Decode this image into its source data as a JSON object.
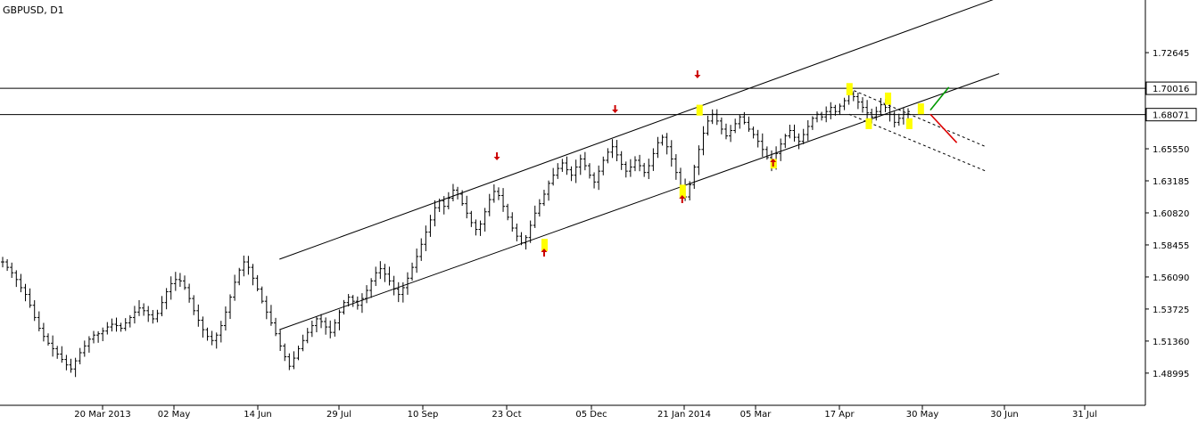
{
  "chart_data": {
    "type": "ohlc",
    "title": "GBPUSD, D1",
    "x_tick_labels": [
      "20 Mar 2013",
      "02 May",
      "14 Jun",
      "29 Jul",
      "10 Sep",
      "23 Oct",
      "05 Dec",
      "21 Jan 2014",
      "05 Mar",
      "17 Apr",
      "30 May",
      "30 Jun",
      "31 Jul"
    ],
    "y_ticks": [
      1.72645,
      1.63185,
      1.6082,
      1.58455,
      1.5609,
      1.53725,
      1.5136,
      1.48995
    ],
    "y_tick_labels": [
      "1.72645",
      "1.63185",
      "1.60820",
      "1.58455",
      "1.56090",
      "1.53725",
      "1.51360",
      "1.48995"
    ],
    "ylim": [
      1.4662,
      1.7653
    ],
    "horizontal_levels": [
      {
        "value": 1.70016,
        "label": "1.70016"
      },
      {
        "value": 1.68071,
        "label": "1.68071"
      }
    ],
    "extra_y_labels": [
      "1.65550"
    ],
    "colors": {
      "bars": "#000000",
      "highlight": "#ffff00",
      "arrow": "#cc0000",
      "bullish_projection": "#009900",
      "bearish_projection": "#dd0000",
      "label_box": "#ffffff"
    },
    "series": [
      {
        "values": [
          1.572,
          1.568,
          1.564,
          1.559,
          1.553,
          1.548,
          1.54,
          1.531,
          1.523,
          1.517,
          1.512,
          1.508,
          1.504,
          1.5,
          1.496,
          1.493,
          1.499,
          1.505,
          1.51,
          1.515,
          1.518,
          1.519,
          1.521,
          1.524,
          1.526,
          1.525,
          1.523,
          1.527,
          1.531,
          1.535,
          1.538,
          1.536,
          1.533,
          1.53,
          1.534,
          1.542,
          1.55,
          1.556,
          1.559,
          1.558,
          1.553,
          1.545,
          1.536,
          1.529,
          1.522,
          1.517,
          1.514,
          1.518,
          1.525,
          1.535,
          1.546,
          1.557,
          1.566,
          1.572,
          1.568,
          1.56,
          1.552,
          1.543,
          1.535,
          1.527,
          1.519,
          1.51,
          1.502,
          1.495,
          1.501,
          1.508,
          1.514,
          1.52,
          1.525,
          1.53,
          1.528,
          1.524,
          1.52,
          1.527,
          1.535,
          1.542,
          1.546,
          1.543,
          1.54,
          1.545,
          1.551,
          1.558,
          1.564,
          1.567,
          1.563,
          1.558,
          1.552,
          1.548,
          1.553,
          1.56,
          1.568,
          1.576,
          1.585,
          1.594,
          1.603,
          1.612,
          1.617,
          1.613,
          1.619,
          1.625,
          1.622,
          1.615,
          1.608,
          1.601,
          1.596,
          1.6,
          1.609,
          1.618,
          1.624,
          1.621,
          1.613,
          1.605,
          1.597,
          1.591,
          1.586,
          1.59,
          1.599,
          1.608,
          1.615,
          1.622,
          1.63,
          1.636,
          1.641,
          1.645,
          1.64,
          1.636,
          1.642,
          1.648,
          1.643,
          1.636,
          1.631,
          1.639,
          1.647,
          1.653,
          1.657,
          1.651,
          1.644,
          1.639,
          1.642,
          1.647,
          1.643,
          1.638,
          1.643,
          1.652,
          1.66,
          1.664,
          1.657,
          1.648,
          1.638,
          1.628,
          1.62,
          1.629,
          1.642,
          1.655,
          1.667,
          1.676,
          1.681,
          1.676,
          1.67,
          1.665,
          1.669,
          1.674,
          1.679,
          1.675,
          1.67,
          1.666,
          1.661,
          1.655,
          1.649,
          1.645,
          1.652,
          1.659,
          1.665,
          1.669,
          1.664,
          1.661,
          1.666,
          1.672,
          1.678,
          1.681,
          1.679,
          1.683,
          1.686,
          1.683,
          1.687,
          1.691,
          1.696,
          1.694,
          1.69,
          1.686,
          1.682,
          1.679,
          1.683,
          1.688,
          1.686,
          1.681,
          1.675,
          1.678,
          1.681,
          1.683
        ]
      }
    ],
    "channels": [
      {
        "style": "solid",
        "lines": [
          {
            "x1": "2013-06-26",
            "y1": 1.574,
            "x2": "2014-07-02",
            "y2": 1.77
          },
          {
            "x1": "2013-06-26",
            "y1": 1.522,
            "x2": "2014-06-28",
            "y2": 1.711
          }
        ]
      },
      {
        "style": "dashed",
        "lines": [
          {
            "x1": "2014-04-22",
            "y1": 1.7,
            "x2": "2014-06-23",
            "y2": 1.657
          },
          {
            "x1": "2014-04-22",
            "y1": 1.681,
            "x2": "2014-06-23",
            "y2": 1.639
          }
        ]
      }
    ],
    "signals": {
      "arrows_down": [
        "2013-10-18",
        "2013-12-17",
        "2014-01-29"
      ],
      "arrows_up": [
        "2013-11-11",
        "2014-01-20",
        "2014-03-14"
      ],
      "highlights": [
        {
          "date": "2013-11-11",
          "low": 1.58,
          "high": 1.589
        },
        {
          "date": "2014-01-20",
          "low": 1.619,
          "high": 1.629
        },
        {
          "date": "2014-01-30",
          "low": 1.68,
          "high": 1.688
        },
        {
          "date": "2014-03-14",
          "low": 1.641,
          "high": 1.648
        },
        {
          "date": "2014-04-22",
          "low": 1.695,
          "high": 1.704
        },
        {
          "date": "2014-05-02",
          "low": 1.67,
          "high": 1.678
        },
        {
          "date": "2014-05-12",
          "low": 1.688,
          "high": 1.697
        },
        {
          "date": "2014-05-23",
          "low": 1.67,
          "high": 1.678
        },
        {
          "date": "2014-05-29",
          "low": 1.681,
          "high": 1.689
        }
      ]
    },
    "projections": [
      {
        "direction": "up",
        "x1": "2014-06-02",
        "y1": 1.684,
        "x2": "2014-06-09",
        "y2": 1.701
      },
      {
        "direction": "down",
        "x1": "2014-06-02",
        "y1": 1.681,
        "x2": "2014-06-12",
        "y2": 1.66
      }
    ],
    "grid": false
  }
}
